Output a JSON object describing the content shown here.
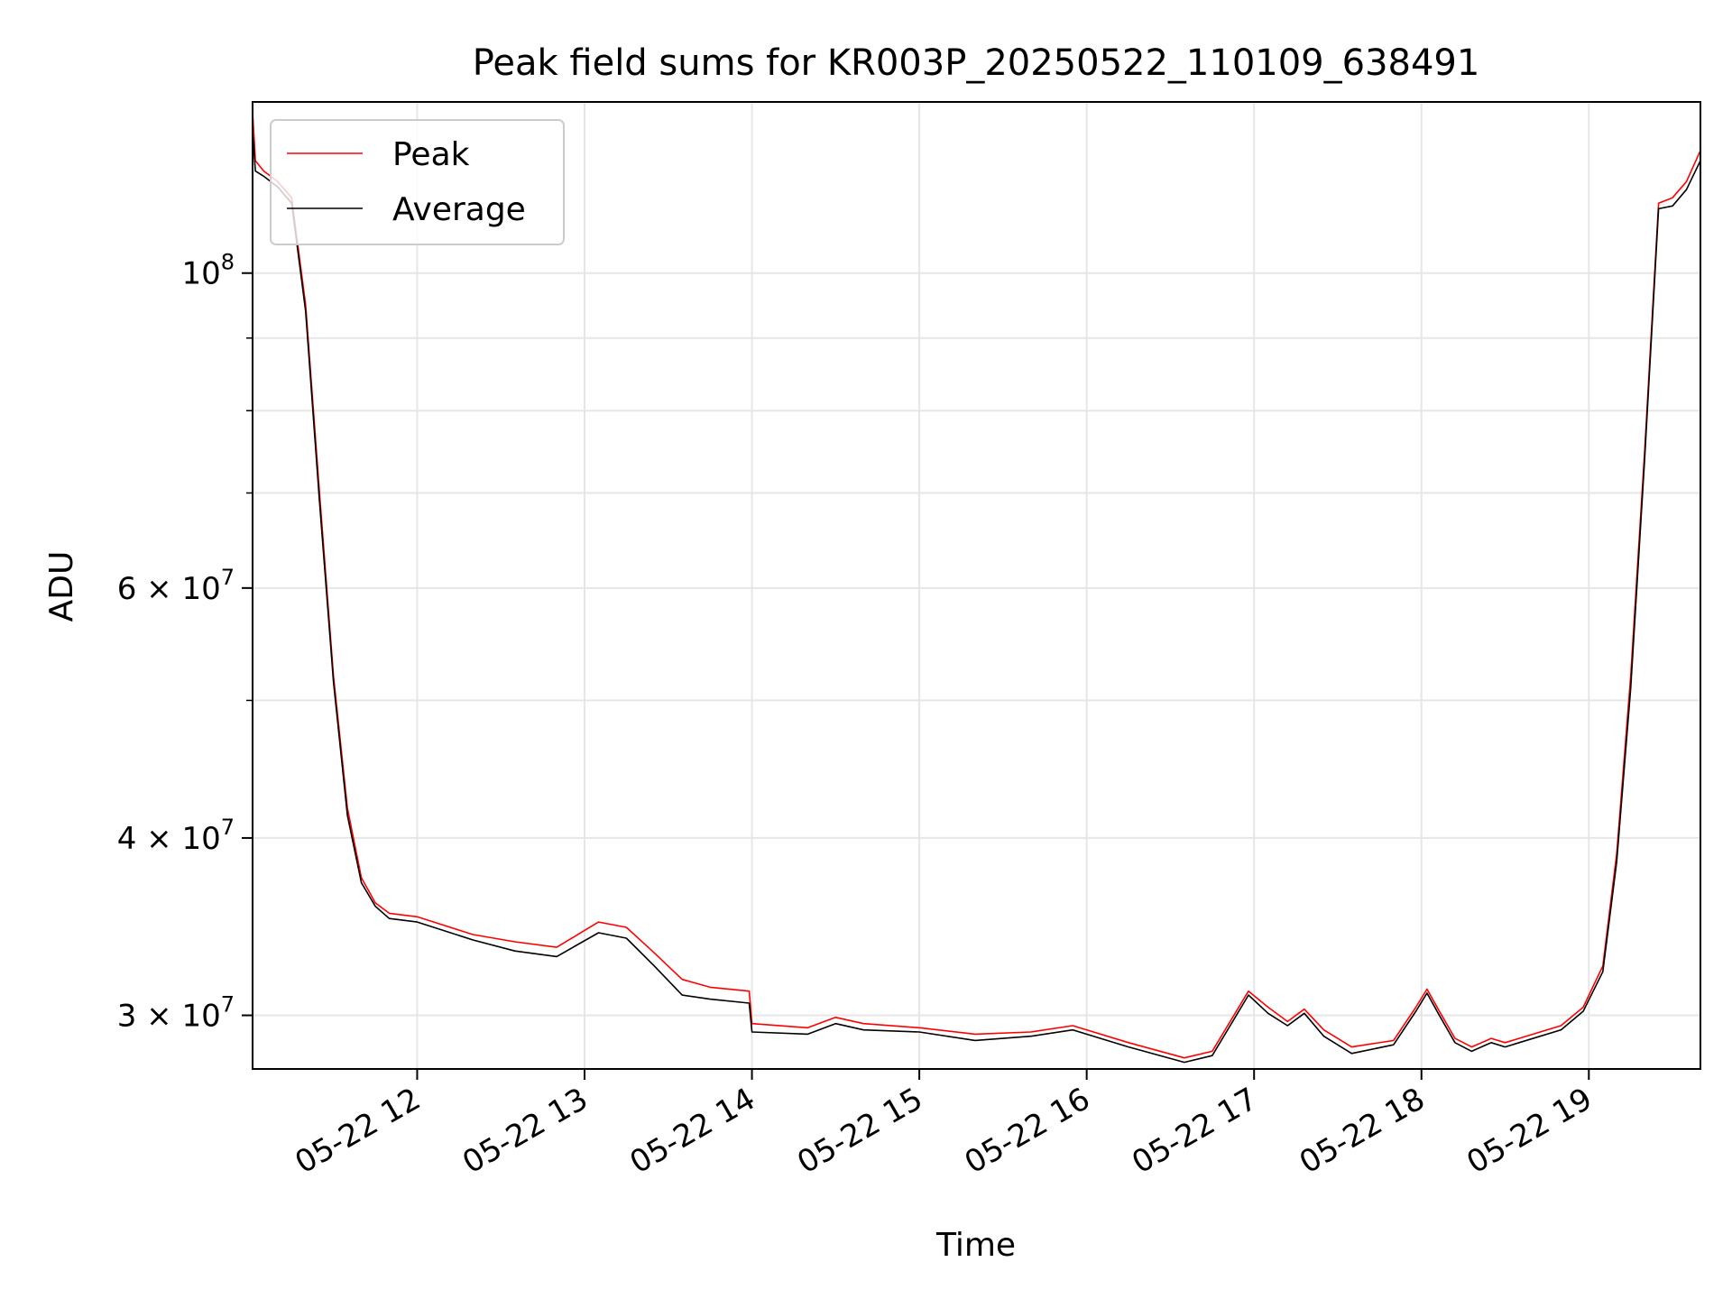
{
  "chart_data": {
    "type": "line",
    "title": "Peak field sums for KR003P_20250522_110109_638491",
    "xlabel": "Time",
    "ylabel": "ADU",
    "yscale": "log",
    "xlim": [
      "2025-05-22 11:01",
      "2025-05-22 19:40"
    ],
    "ylim": [
      27500000,
      132000000
    ],
    "x_ticks": [
      "05-22 12",
      "05-22 13",
      "05-22 14",
      "05-22 15",
      "05-22 16",
      "05-22 17",
      "05-22 18",
      "05-22 19"
    ],
    "y_ticks": [
      {
        "value": 100000000,
        "mantissa": "",
        "base": "10",
        "exp": "8"
      },
      {
        "value": 60000000,
        "mantissa": "6 × ",
        "base": "10",
        "exp": "7"
      },
      {
        "value": 40000000,
        "mantissa": "4 × ",
        "base": "10",
        "exp": "7"
      },
      {
        "value": 30000000,
        "mantissa": "3 × ",
        "base": "10",
        "exp": "7"
      }
    ],
    "y_minor_ticks": [
      50000000,
      70000000,
      80000000,
      90000000
    ],
    "grid": true,
    "legend_position": "top-left",
    "x": [
      "2025-05-22 11:01",
      "2025-05-22 11:02",
      "2025-05-22 11:05",
      "2025-05-22 11:10",
      "2025-05-22 11:15",
      "2025-05-22 11:20",
      "2025-05-22 11:25",
      "2025-05-22 11:30",
      "2025-05-22 11:35",
      "2025-05-22 11:40",
      "2025-05-22 11:45",
      "2025-05-22 11:50",
      "2025-05-22 12:00",
      "2025-05-22 12:20",
      "2025-05-22 12:35",
      "2025-05-22 12:50",
      "2025-05-22 13:05",
      "2025-05-22 13:15",
      "2025-05-22 13:25",
      "2025-05-22 13:35",
      "2025-05-22 13:45",
      "2025-05-22 13:59",
      "2025-05-22 14:00",
      "2025-05-22 14:20",
      "2025-05-22 14:30",
      "2025-05-22 14:40",
      "2025-05-22 15:00",
      "2025-05-22 15:20",
      "2025-05-22 15:40",
      "2025-05-22 15:55",
      "2025-05-22 16:15",
      "2025-05-22 16:35",
      "2025-05-22 16:45",
      "2025-05-22 16:58",
      "2025-05-22 17:05",
      "2025-05-22 17:12",
      "2025-05-22 17:18",
      "2025-05-22 17:25",
      "2025-05-22 17:35",
      "2025-05-22 17:50",
      "2025-05-22 17:58",
      "2025-05-22 18:02",
      "2025-05-22 18:06",
      "2025-05-22 18:12",
      "2025-05-22 18:18",
      "2025-05-22 18:25",
      "2025-05-22 18:30",
      "2025-05-22 18:35",
      "2025-05-22 18:50",
      "2025-05-22 18:58",
      "2025-05-22 19:05",
      "2025-05-22 19:10",
      "2025-05-22 19:15",
      "2025-05-22 19:20",
      "2025-05-22 19:25",
      "2025-05-22 19:30",
      "2025-05-22 19:35",
      "2025-05-22 19:40"
    ],
    "series": [
      {
        "name": "Peak",
        "color": "#ff0000",
        "values": [
          130000000,
          120000000,
          118000000,
          116000000,
          113000000,
          95000000,
          70000000,
          52000000,
          42000000,
          37500000,
          36000000,
          35400000,
          35200000,
          34200000,
          33800000,
          33500000,
          34900000,
          34600000,
          33200000,
          31800000,
          31400000,
          31200000,
          29600000,
          29400000,
          29900000,
          29600000,
          29400000,
          29100000,
          29200000,
          29500000,
          28700000,
          28000000,
          28300000,
          31200000,
          30400000,
          29700000,
          30300000,
          29300000,
          28500000,
          28800000,
          30400000,
          31300000,
          30300000,
          28900000,
          28500000,
          28900000,
          28700000,
          28900000,
          29500000,
          30400000,
          32500000,
          39000000,
          52000000,
          75000000,
          112000000,
          113000000,
          116000000,
          122000000
        ]
      },
      {
        "name": "Average",
        "color": "#000000",
        "values": [
          126000000,
          118000000,
          117000000,
          115000000,
          112000000,
          94000000,
          69000000,
          51500000,
          41500000,
          37200000,
          35800000,
          35100000,
          34900000,
          33900000,
          33300000,
          33000000,
          34300000,
          34000000,
          32500000,
          31000000,
          30800000,
          30600000,
          29200000,
          29100000,
          29600000,
          29300000,
          29200000,
          28800000,
          29000000,
          29300000,
          28500000,
          27800000,
          28100000,
          31000000,
          30100000,
          29500000,
          30100000,
          29000000,
          28200000,
          28600000,
          30200000,
          31100000,
          30100000,
          28700000,
          28300000,
          28700000,
          28500000,
          28700000,
          29300000,
          30200000,
          32200000,
          38500000,
          51000000,
          74000000,
          111000000,
          111500000,
          114500000,
          120000000
        ]
      }
    ]
  }
}
